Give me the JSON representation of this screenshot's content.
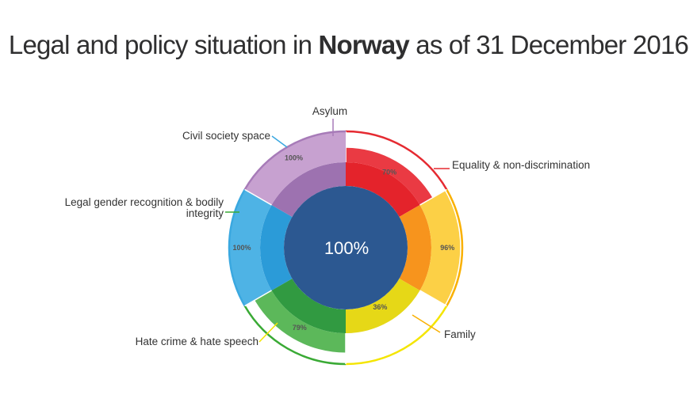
{
  "title": {
    "prefix": "Legal and policy situation in ",
    "country": "Norway",
    "suffix": " as of 31 December 2016"
  },
  "chart_data": {
    "type": "pie",
    "title": "Legal and policy situation in Norway as of 31 December 2016",
    "overall": {
      "label": "100%",
      "value": 100
    },
    "start_category": "Equality & non-discrimination",
    "direction": "clockwise",
    "categories": [
      {
        "name": "Equality & non-discrimination",
        "value": 70,
        "label": "70%",
        "color": "#e52a31",
        "inner": "#e4232b",
        "light": "#ea3a43"
      },
      {
        "name": "Family",
        "value": 96,
        "label": "96%",
        "color": "#f9b000",
        "inner": "#f7941d",
        "light": "#fcd046"
      },
      {
        "name": "Hate crime & hate speech",
        "value": 36,
        "label": "36%",
        "color": "#f4e500",
        "inner": "#e6d817",
        "light": "#f3ea3a"
      },
      {
        "name": "Legal gender recognition & bodily integrity",
        "value": 79,
        "label": "79%",
        "color": "#3aaa35",
        "inner": "#319a41",
        "light": "#5cb85a"
      },
      {
        "name": "Civil society space",
        "value": 100,
        "label": "100%",
        "color": "#3aa8e0",
        "inner": "#2b9bd8",
        "light": "#4eb3e5"
      },
      {
        "name": "Asylum",
        "value": 100,
        "label": "100%",
        "color": "#a77bb8",
        "inner": "#9d72b0",
        "light": "#c7a1d0"
      }
    ]
  }
}
